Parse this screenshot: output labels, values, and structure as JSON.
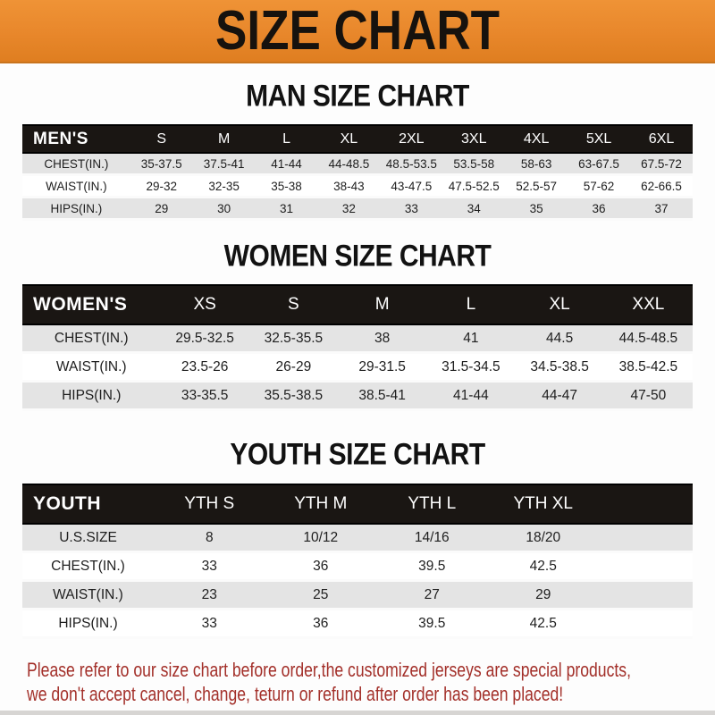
{
  "banner": {
    "title": "SIZE CHART"
  },
  "sections": [
    {
      "heading": "MAN SIZE CHART",
      "table": {
        "header_label": "MEN'S",
        "columns": [
          "S",
          "M",
          "L",
          "XL",
          "2XL",
          "3XL",
          "4XL",
          "5XL",
          "6XL"
        ],
        "rows": [
          {
            "label": "CHEST(IN.)",
            "values": [
              "35-37.5",
              "37.5-41",
              "41-44",
              "44-48.5",
              "48.5-53.5",
              "53.5-58",
              "58-63",
              "63-67.5",
              "67.5-72"
            ]
          },
          {
            "label": "WAIST(IN.)",
            "values": [
              "29-32",
              "32-35",
              "35-38",
              "38-43",
              "43-47.5",
              "47.5-52.5",
              "52.5-57",
              "57-62",
              "62-66.5"
            ]
          },
          {
            "label": "HIPS(IN.)",
            "values": [
              "29",
              "30",
              "31",
              "32",
              "33",
              "34",
              "35",
              "36",
              "37"
            ]
          }
        ]
      }
    },
    {
      "heading": "WOMEN SIZE CHART",
      "table": {
        "header_label": "WOMEN'S",
        "columns": [
          "XS",
          "S",
          "M",
          "L",
          "XL",
          "XXL"
        ],
        "rows": [
          {
            "label": "CHEST(IN.)",
            "values": [
              "29.5-32.5",
              "32.5-35.5",
              "38",
              "41",
              "44.5",
              "44.5-48.5"
            ]
          },
          {
            "label": "WAIST(IN.)",
            "values": [
              "23.5-26",
              "26-29",
              "29-31.5",
              "31.5-34.5",
              "34.5-38.5",
              "38.5-42.5"
            ]
          },
          {
            "label": "HIPS(IN.)",
            "values": [
              "33-35.5",
              "35.5-38.5",
              "38.5-41",
              "41-44",
              "44-47",
              "47-50"
            ]
          }
        ]
      }
    },
    {
      "heading": "YOUTH SIZE CHART",
      "table": {
        "header_label": "YOUTH",
        "columns": [
          "YTH S",
          "YTH M",
          "YTH L",
          "YTH XL"
        ],
        "rows": [
          {
            "label": "U.S.SIZE",
            "values": [
              "8",
              "10/12",
              "14/16",
              "18/20"
            ]
          },
          {
            "label": "CHEST(IN.)",
            "values": [
              "33",
              "36",
              "39.5",
              "42.5"
            ]
          },
          {
            "label": "WAIST(IN.)",
            "values": [
              "23",
              "25",
              "27",
              "29"
            ]
          },
          {
            "label": "HIPS(IN.)",
            "values": [
              "33",
              "36",
              "39.5",
              "42.5"
            ]
          }
        ]
      }
    }
  ],
  "footer": {
    "line1": "Please refer to our size chart before order,the customized jerseys are special products,",
    "line2": "we don't accept cancel, change, teturn or refund after order has been placed!"
  },
  "colors": {
    "banner_bg": "#E8872B",
    "header_bar": "#1A1613",
    "row_stripe": "#E4E4E4",
    "notice_red": "#A3302A"
  }
}
